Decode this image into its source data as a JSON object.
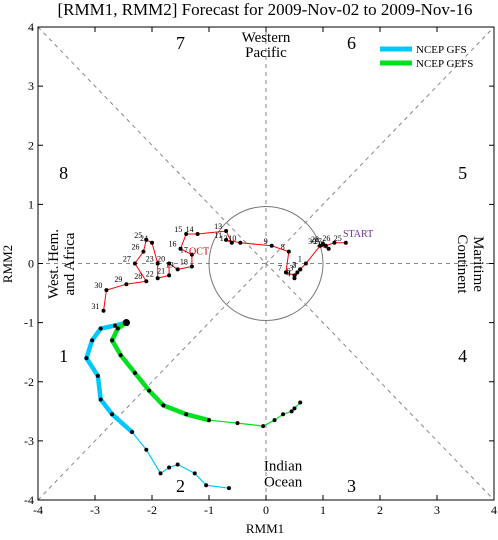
{
  "chart_data": {
    "type": "line",
    "title": "[RMM1, RMM2] Forecast for 2009-Nov-02 to 2009-Nov-16",
    "xlabel": "RMM1",
    "ylabel": "RMM2",
    "xlim": [
      -4,
      4
    ],
    "ylim": [
      -4,
      4
    ],
    "xticks": [
      "-4",
      "-3",
      "-2",
      "-1",
      "0",
      "1",
      "2",
      "3",
      "4"
    ],
    "yticks": [
      "-4",
      "-3",
      "-2",
      "-1",
      "0",
      "1",
      "2",
      "3",
      "4"
    ],
    "grid": false,
    "legend_position": "top-right",
    "phase_labels": [
      {
        "text": "1",
        "x": -3.55,
        "y": -1.55
      },
      {
        "text": "2",
        "x": -1.5,
        "y": -3.75
      },
      {
        "text": "3",
        "x": 1.5,
        "y": -3.75
      },
      {
        "text": "4",
        "x": 3.45,
        "y": -1.55
      },
      {
        "text": "5",
        "x": 3.45,
        "y": 1.55
      },
      {
        "text": "6",
        "x": 1.5,
        "y": 3.75
      },
      {
        "text": "7",
        "x": -1.5,
        "y": 3.75
      },
      {
        "text": "8",
        "x": -3.55,
        "y": 1.55
      }
    ],
    "region_labels": {
      "top": [
        "Western",
        "Pacific"
      ],
      "bottom": [
        "Indian",
        "Ocean"
      ],
      "left": [
        "West. Hem.",
        "and Africa"
      ],
      "right": [
        "Maritime",
        "Continent"
      ]
    },
    "start_label": "START",
    "month_label": "OCT",
    "observed": {
      "color": "#ff0000",
      "day_labels": [
        "25",
        "26",
        "27",
        "28",
        "29",
        "30",
        "1",
        "2",
        "3",
        "4",
        "5",
        "6",
        "7",
        "8",
        "9",
        "10",
        "11",
        "12",
        "13",
        "14",
        "15",
        "16",
        "17",
        "18",
        "19",
        "20",
        "21",
        "22",
        "23",
        "24",
        "25",
        "26",
        "27",
        "28",
        "29",
        "30",
        "31"
      ],
      "points": [
        [
          1.4,
          0.35
        ],
        [
          1.2,
          0.35
        ],
        [
          1.05,
          0.3
        ],
        [
          1.0,
          0.33
        ],
        [
          1.1,
          0.25
        ],
        [
          0.95,
          0.3
        ],
        [
          0.7,
          0.0
        ],
        [
          0.6,
          -0.1
        ],
        [
          0.55,
          -0.15
        ],
        [
          0.5,
          -0.25
        ],
        [
          0.6,
          -0.1
        ],
        [
          0.5,
          -0.2
        ],
        [
          0.35,
          -0.15
        ],
        [
          0.4,
          0.2
        ],
        [
          0.1,
          0.3
        ],
        [
          -0.45,
          0.35
        ],
        [
          -0.7,
          0.4
        ],
        [
          -0.6,
          0.35
        ],
        [
          -0.7,
          0.55
        ],
        [
          -1.2,
          0.5
        ],
        [
          -1.4,
          0.5
        ],
        [
          -1.5,
          0.25
        ],
        [
          -1.3,
          0.15
        ],
        [
          -1.3,
          -0.05
        ],
        [
          -1.55,
          -0.1
        ],
        [
          -1.7,
          0.0
        ],
        [
          -1.7,
          -0.2
        ],
        [
          -1.9,
          -0.25
        ],
        [
          -1.9,
          0.0
        ],
        [
          -2.0,
          0.35
        ],
        [
          -2.1,
          0.4
        ],
        [
          -2.15,
          0.2
        ],
        [
          -2.3,
          0.0
        ],
        [
          -2.1,
          -0.3
        ],
        [
          -2.45,
          -0.35
        ],
        [
          -2.8,
          -0.45
        ],
        [
          -2.85,
          -0.8
        ]
      ]
    },
    "series": [
      {
        "name": "NCEP GFS",
        "color": "#00c8ff",
        "points": [
          [
            -2.45,
            -1.0
          ],
          [
            -2.65,
            -1.05
          ],
          [
            -2.9,
            -1.1
          ],
          [
            -3.05,
            -1.3
          ],
          [
            -3.15,
            -1.6
          ],
          [
            -2.95,
            -1.9
          ],
          [
            -2.9,
            -2.3
          ],
          [
            -2.7,
            -2.55
          ],
          [
            -2.35,
            -2.85
          ],
          [
            -2.1,
            -3.15
          ],
          [
            -1.85,
            -3.55
          ],
          [
            -1.7,
            -3.45
          ],
          [
            -1.55,
            -3.4
          ],
          [
            -1.25,
            -3.55
          ],
          [
            -1.05,
            -3.75
          ],
          [
            -0.65,
            -3.8
          ]
        ]
      },
      {
        "name": "NCEP GEFS",
        "color": "#00e020",
        "points": [
          [
            -2.45,
            -1.0
          ],
          [
            -2.6,
            -1.1
          ],
          [
            -2.7,
            -1.3
          ],
          [
            -2.55,
            -1.55
          ],
          [
            -2.3,
            -1.85
          ],
          [
            -2.05,
            -2.15
          ],
          [
            -1.8,
            -2.4
          ],
          [
            -1.4,
            -2.55
          ],
          [
            -1.0,
            -2.65
          ],
          [
            -0.5,
            -2.7
          ],
          [
            -0.05,
            -2.75
          ],
          [
            0.15,
            -2.65
          ],
          [
            0.3,
            -2.55
          ],
          [
            0.45,
            -2.5
          ],
          [
            0.5,
            -2.45
          ],
          [
            0.6,
            -2.35
          ]
        ]
      }
    ]
  }
}
